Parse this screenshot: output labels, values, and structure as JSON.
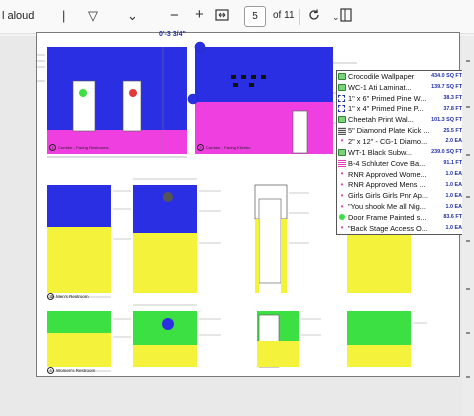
{
  "toolbar": {
    "read_aloud": "l aloud",
    "zoom_out": "−",
    "zoom_in": "+",
    "page_current": "5",
    "page_total": "of 11"
  },
  "colors": {
    "wall_blue": "#2b2fe4",
    "wall_pink": "#ef3fe0",
    "wall_yellow": "#f4f23a",
    "wall_green": "#3ce043",
    "text_blue": "#1f2fa8"
  },
  "drawing": {
    "dim_label": "0'-3 3/4\"",
    "elevations_top": [
      {
        "number": "1",
        "title": "Corridor - Facing Restrooms"
      },
      {
        "number": "2",
        "title": "Corridor - Facing Kitchen"
      }
    ],
    "mens_restroom": {
      "number": "3",
      "title": "Men's Restroom"
    },
    "womens_restroom": {
      "number": "4",
      "title": "Women's Restroom"
    }
  },
  "legend": [
    {
      "icon": "green-shape",
      "color": "#7cd17c",
      "label": "Crocodile Wallpaper",
      "qty": "434.0 SQ FT"
    },
    {
      "icon": "green-shape",
      "color": "#7cd17c",
      "label": "WC-1 Ati Laminat...",
      "qty": "139.7 SQ FT"
    },
    {
      "icon": "dashed",
      "color": "#1f2fa8",
      "label": "1\" x 6\" Primed Pine W...",
      "qty": "38.3 FT"
    },
    {
      "icon": "dashed",
      "color": "#1f2fa8",
      "label": "1\" x 4\" Primed Pine P...",
      "qty": "37.8 FT"
    },
    {
      "icon": "green-shape",
      "color": "#7cd17c",
      "label": "Cheetah Print Wal...",
      "qty": "101.3 SQ FT"
    },
    {
      "icon": "stripe",
      "color": "#555555",
      "label": "5\" Diamond Plate Kick ...",
      "qty": "25.5 FT"
    },
    {
      "icon": "star",
      "color": "#e23ab0",
      "label": "2\" x 12\" - CG-1 Diamo...",
      "qty": "2.0 EA"
    },
    {
      "icon": "green-shape",
      "color": "#7cd17c",
      "label": "WT-1 Black Subw...",
      "qty": "239.0 SQ FT"
    },
    {
      "icon": "pink-stripe",
      "color": "#e23ab0",
      "label": "B-4  Schluter Cove Ba...",
      "qty": "91.1 FT"
    },
    {
      "icon": "star",
      "color": "#e23ab0",
      "label": "RNR Approved Wome...",
      "qty": "1.0 EA"
    },
    {
      "icon": "star",
      "color": "#e23ab0",
      "label": "RNR Approved Mens ...",
      "qty": "1.0 EA"
    },
    {
      "icon": "star",
      "color": "#e23ab0",
      "label": "Girls Girls Girls Pnr Ap...",
      "qty": "1.0 EA"
    },
    {
      "icon": "star",
      "color": "#e23ab0",
      "label": "\"You shook Me all Nig...",
      "qty": "1.0 EA"
    },
    {
      "icon": "dot",
      "color": "#3ce043",
      "label": "Door Frame Painted s...",
      "qty": "83.6 FT"
    },
    {
      "icon": "star",
      "color": "#e23ab0",
      "label": "\"Back Stage Access O...",
      "qty": "1.0 EA"
    }
  ]
}
